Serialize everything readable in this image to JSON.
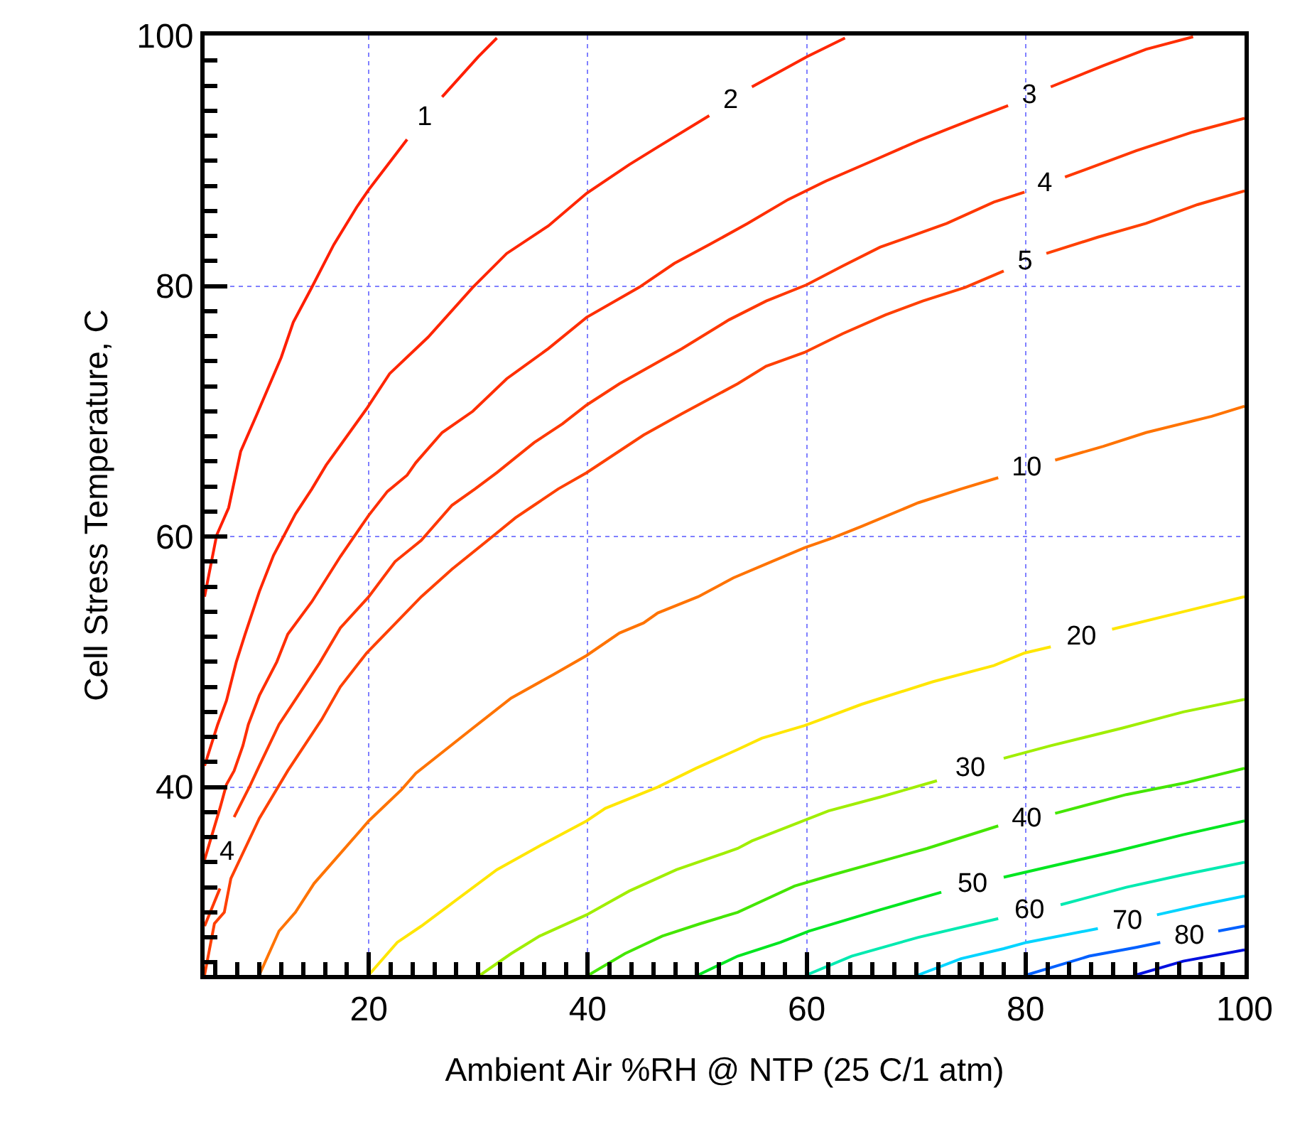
{
  "chart_data": {
    "type": "line",
    "xlabel": "Ambient Air %RH @ NTP (25 C/1 atm)",
    "ylabel": "Cell Stress Temperature, C",
    "xlim": [
      5,
      100
    ],
    "ylim": [
      25,
      100
    ],
    "xticks": [
      {
        "value": 6,
        "label": null
      },
      {
        "value": 8,
        "label": null
      },
      {
        "value": 10,
        "label": null
      },
      {
        "value": 12,
        "label": null
      },
      {
        "value": 14,
        "label": null
      },
      {
        "value": 16,
        "label": null
      },
      {
        "value": 18,
        "label": null
      },
      20,
      {
        "value": 22,
        "label": null
      },
      {
        "value": 24,
        "label": null
      },
      {
        "value": 26,
        "label": null
      },
      {
        "value": 28,
        "label": null
      },
      {
        "value": 30,
        "label": null
      },
      {
        "value": 32,
        "label": null
      },
      {
        "value": 34,
        "label": null
      },
      {
        "value": 36,
        "label": null
      },
      {
        "value": 38,
        "label": null
      },
      40,
      {
        "value": 42,
        "label": null
      },
      {
        "value": 44,
        "label": null
      },
      {
        "value": 46,
        "label": null
      },
      {
        "value": 48,
        "label": null
      },
      {
        "value": 50,
        "label": null
      },
      {
        "value": 52,
        "label": null
      },
      {
        "value": 54,
        "label": null
      },
      {
        "value": 56,
        "label": null
      },
      {
        "value": 58,
        "label": null
      },
      60,
      {
        "value": 62,
        "label": null
      },
      {
        "value": 64,
        "label": null
      },
      {
        "value": 66,
        "label": null
      },
      {
        "value": 68,
        "label": null
      },
      {
        "value": 70,
        "label": null
      },
      {
        "value": 72,
        "label": null
      },
      {
        "value": 74,
        "label": null
      },
      {
        "value": 76,
        "label": null
      },
      {
        "value": 78,
        "label": null
      },
      80,
      {
        "value": 82,
        "label": null
      },
      {
        "value": 84,
        "label": null
      },
      {
        "value": 86,
        "label": null
      },
      {
        "value": 88,
        "label": null
      },
      {
        "value": 90,
        "label": null
      },
      {
        "value": 92,
        "label": null
      },
      {
        "value": 94,
        "label": null
      },
      {
        "value": 96,
        "label": null
      },
      {
        "value": 98,
        "label": null
      },
      100
    ],
    "yticks": [
      {
        "value": 26,
        "label": null
      },
      {
        "value": 28,
        "label": null
      },
      {
        "value": 30,
        "label": null
      },
      {
        "value": 32,
        "label": null
      },
      {
        "value": 34,
        "label": null
      },
      {
        "value": 36,
        "label": null
      },
      {
        "value": 38,
        "label": null
      },
      40,
      {
        "value": 42,
        "label": null
      },
      {
        "value": 44,
        "label": null
      },
      {
        "value": 46,
        "label": null
      },
      {
        "value": 48,
        "label": null
      },
      {
        "value": 50,
        "label": null
      },
      {
        "value": 52,
        "label": null
      },
      {
        "value": 54,
        "label": null
      },
      {
        "value": 56,
        "label": null
      },
      {
        "value": 58,
        "label": null
      },
      60,
      {
        "value": 62,
        "label": null
      },
      {
        "value": 64,
        "label": null
      },
      {
        "value": 66,
        "label": null
      },
      {
        "value": 68,
        "label": null
      },
      {
        "value": 70,
        "label": null
      },
      {
        "value": 72,
        "label": null
      },
      {
        "value": 74,
        "label": null
      },
      {
        "value": 76,
        "label": null
      },
      {
        "value": 78,
        "label": null
      },
      80,
      {
        "value": 82,
        "label": null
      },
      {
        "value": 84,
        "label": null
      },
      {
        "value": 86,
        "label": null
      },
      {
        "value": 88,
        "label": null
      },
      {
        "value": 90,
        "label": null
      },
      {
        "value": 92,
        "label": null
      },
      {
        "value": 94,
        "label": null
      },
      {
        "value": 96,
        "label": null
      },
      {
        "value": 98,
        "label": null
      },
      100
    ],
    "grid": true,
    "legend": false,
    "marker": "none",
    "line_style": "solid",
    "series": [
      {
        "name": "1",
        "color": "#ff1e00",
        "x": [
          5,
          6.1,
          7.2,
          8.3,
          9.8,
          12,
          13.1,
          14.8,
          16.8,
          18.9,
          20,
          23.5,
          25.1,
          26.7,
          30,
          31.7
        ],
        "values": [
          55.2,
          60.1,
          62.3,
          66.8,
          69.8,
          74.3,
          77.1,
          79.9,
          83.3,
          86.3,
          87.7,
          91.7,
          null,
          95.1,
          98.3,
          99.8
        ]
      },
      {
        "name": "2",
        "color": "#ff2600",
        "x": [
          5,
          6.2,
          7,
          7.9,
          8.7,
          10,
          11.3,
          13.3,
          14.8,
          16.1,
          19.8,
          21.9,
          25.4,
          29.5,
          32.6,
          36.4,
          39.9,
          43.8,
          46.4,
          51.1,
          53.05,
          55,
          60,
          63.5
        ],
        "values": [
          41.7,
          45,
          46.9,
          50,
          52.2,
          55.6,
          58.5,
          61.8,
          63.8,
          65.7,
          70.2,
          73,
          75.9,
          79.9,
          82.6,
          84.8,
          87.4,
          89.7,
          91.1,
          93.6,
          null,
          95.9,
          98.3,
          99.8
        ]
      },
      {
        "name": "3",
        "color": "#ff2e00",
        "x": [
          5,
          6.4,
          7,
          7.7,
          8.5,
          9,
          10,
          11.6,
          12.6,
          14.8,
          17.4,
          20,
          21.7,
          23.5,
          24.3,
          26.7,
          29.5,
          32.6,
          36.4,
          39.9,
          44.7,
          47.9,
          51.1,
          54.6,
          58.3,
          61.8,
          66.3,
          70.2,
          72.8,
          75.4,
          78.4,
          80.35,
          82.3,
          87.1,
          91,
          95.3
        ],
        "values": [
          34.2,
          38.3,
          40.2,
          41.3,
          43.3,
          45,
          47.3,
          50,
          52.2,
          54.8,
          58.4,
          61.7,
          63.6,
          64.9,
          65.9,
          68.3,
          70,
          72.6,
          75,
          77.5,
          79.9,
          81.8,
          83.3,
          85,
          86.9,
          88.4,
          90.1,
          91.6,
          92.5,
          93.4,
          94.4,
          null,
          95.9,
          97.6,
          98.9,
          99.9
        ]
      },
      {
        "name": "4",
        "color": "#ff3800",
        "x": [
          5,
          6.4,
          7.05,
          7.7,
          9.2,
          10,
          11.8,
          15.5,
          17.4,
          20,
          22.4,
          24.8,
          27.6,
          29.7,
          31.7,
          35.1,
          37.7,
          39.9,
          42.9,
          48.6,
          52.9,
          56.3,
          60,
          63.3,
          66.7,
          72.8,
          77.1,
          79.9,
          81.75,
          83.6,
          90.1,
          95.3,
          100
        ],
        "values": [
          28.9,
          31.9,
          null,
          37.6,
          40.2,
          41.7,
          45,
          49.9,
          52.7,
          55.2,
          58,
          59.7,
          62.5,
          63.8,
          65.1,
          67.5,
          69,
          70.5,
          72.2,
          75,
          77.3,
          78.8,
          80.1,
          81.6,
          83.1,
          85,
          86.7,
          87.5,
          null,
          88.7,
          90.8,
          92.3,
          93.4
        ]
      },
      {
        "name": "5",
        "color": "#ff4000",
        "x": [
          5,
          5.9,
          6.8,
          7.4,
          10,
          12.6,
          15.7,
          17.4,
          19.8,
          24.8,
          27.6,
          31.3,
          33.4,
          35.1,
          37.3,
          39.9,
          45.1,
          48.6,
          53.7,
          56.3,
          59.8,
          63.3,
          67.2,
          70.6,
          74.5,
          78,
          79.95,
          81.9,
          86.6,
          91,
          95.7,
          100
        ],
        "values": [
          25,
          29.1,
          30,
          32.7,
          37.5,
          41.3,
          45.4,
          48,
          50.7,
          55.2,
          57.4,
          60,
          61.5,
          62.5,
          63.8,
          65.1,
          68.1,
          69.8,
          72.2,
          73.6,
          74.7,
          76.2,
          77.7,
          78.8,
          79.9,
          81.2,
          null,
          82.6,
          83.9,
          85,
          86.5,
          87.6
        ]
      },
      {
        "name": "10",
        "color": "#ff7300",
        "x": [
          10,
          11.8,
          13.3,
          15,
          20,
          23,
          24.3,
          29.5,
          33,
          36.9,
          39.9,
          42.9,
          45.1,
          46.4,
          50.1,
          53.3,
          56.8,
          59.8,
          62.4,
          65,
          70.2,
          74.1,
          77.5,
          80.1,
          82.7,
          87.1,
          91,
          97,
          100
        ],
        "values": [
          25,
          28.5,
          30,
          32.3,
          37.3,
          39.8,
          41.1,
          44.7,
          47.1,
          49,
          50.5,
          52.3,
          53.1,
          53.9,
          55.2,
          56.7,
          58,
          59.1,
          59.9,
          60.8,
          62.7,
          63.8,
          64.7,
          null,
          66.1,
          67.2,
          68.3,
          69.6,
          70.4
        ]
      },
      {
        "name": "20",
        "color": "#ffe600",
        "x": [
          20,
          22.6,
          24.8,
          27.4,
          31.7,
          35.6,
          39.9,
          41.6,
          46.4,
          49.9,
          53.7,
          55.9,
          59.8,
          65,
          71.5,
          77.1,
          79.9,
          82.3,
          85.1,
          87.9,
          94.4,
          100
        ],
        "values": [
          25,
          27.6,
          28.9,
          30.6,
          33.4,
          35.3,
          37.3,
          38.3,
          40,
          41.5,
          43,
          43.9,
          44.9,
          46.6,
          48.4,
          49.7,
          50.7,
          51.2,
          null,
          52.6,
          54,
          55.2
        ]
      },
      {
        "name": "30",
        "color": "#a0ee00",
        "x": [
          30.2,
          33,
          35.6,
          39.9,
          43.8,
          48.1,
          53.7,
          55,
          62,
          66.7,
          71.9,
          74.95,
          78,
          82.3,
          88.8,
          94.4,
          100
        ],
        "values": [
          25,
          26.7,
          28.1,
          29.8,
          31.7,
          33.4,
          35.1,
          35.7,
          38.1,
          39.2,
          40.5,
          null,
          42.3,
          43.3,
          44.7,
          46,
          47
        ]
      },
      {
        "name": "40",
        "color": "#44e600",
        "x": [
          40.1,
          43.4,
          46.8,
          50.3,
          53.7,
          58.9,
          62.4,
          71,
          77.5,
          80.1,
          82.7,
          89.2,
          94.4,
          100
        ],
        "values": [
          25,
          26.7,
          28.1,
          29.1,
          30,
          32.1,
          33,
          35.1,
          36.9,
          null,
          37.9,
          39.4,
          40.3,
          41.5
        ]
      },
      {
        "name": "50",
        "color": "#00e620",
        "x": [
          50.1,
          53.7,
          57.6,
          60.2,
          66.7,
          72.3,
          75.15,
          78,
          88.4,
          94.4,
          100
        ],
        "values": [
          25,
          26.5,
          27.6,
          28.5,
          30.2,
          31.6,
          null,
          32.8,
          34.9,
          36.2,
          37.3
        ]
      },
      {
        "name": "60",
        "color": "#00eab0",
        "x": [
          60,
          64.1,
          70.2,
          77.5,
          80.35,
          83.2,
          89.2,
          94.4,
          100
        ],
        "values": [
          25,
          26.5,
          28,
          29.5,
          null,
          30.6,
          32,
          33,
          34
        ]
      },
      {
        "name": "70",
        "color": "#00d4ff",
        "x": [
          70.2,
          74.1,
          78,
          80.1,
          86.6,
          89.3,
          92,
          96.1,
          100
        ],
        "values": [
          25,
          26.3,
          27.1,
          27.6,
          28.7,
          null,
          29.8,
          30.6,
          31.3
        ]
      },
      {
        "name": "80",
        "color": "#0060ff",
        "x": [
          80.1,
          85.8,
          90.1,
          92.3,
          94.95,
          97.6,
          100
        ],
        "values": [
          25,
          26.5,
          27.2,
          27.6,
          null,
          28.5,
          28.9
        ]
      },
      {
        "color": "#0010e0",
        "x": [
          90.1,
          94.4,
          100
        ],
        "values": [
          25,
          26.1,
          27
        ]
      }
    ]
  }
}
